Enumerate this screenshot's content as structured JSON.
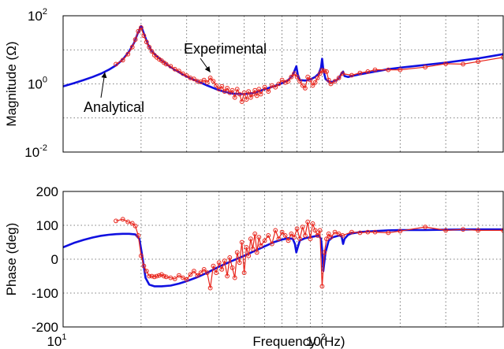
{
  "chart_data": [
    {
      "type": "line",
      "xscale": "log",
      "yscale": "log",
      "xlim": [
        10,
        500
      ],
      "ylim": [
        0.01,
        100
      ],
      "grid": true,
      "ylabel": "Magnitude (Ω)",
      "y_ticks": [
        {
          "base": "10",
          "exp": "-2"
        },
        {
          "base": "10",
          "exp": "0"
        },
        {
          "base": "10",
          "exp": "2"
        }
      ],
      "colors": {
        "analytical": "#1010e0",
        "experimental": "#e8231a"
      },
      "annotations": [
        {
          "text": "Experimental",
          "points_to": [
            37,
            2.2
          ]
        },
        {
          "text": "Analytical",
          "points_to": [
            14.5,
            2.2
          ]
        }
      ],
      "series": [
        {
          "name": "Analytical",
          "x": [
            10,
            11,
            12,
            13,
            14,
            15,
            16,
            17,
            18,
            18.8,
            19.4,
            20,
            20.5,
            21.2,
            22,
            24,
            26,
            28,
            30,
            33,
            36,
            40,
            45,
            50,
            55,
            60,
            65,
            70,
            74,
            77,
            78.5,
            79.5,
            80.5,
            82,
            86,
            90,
            94,
            97,
            99,
            100,
            101,
            103,
            106,
            110,
            114,
            117,
            119,
            120.5,
            122,
            126,
            130,
            140,
            160,
            180,
            200,
            250,
            300,
            350,
            400,
            450,
            500
          ],
          "y": [
            0.85,
            1.05,
            1.3,
            1.6,
            2.0,
            2.6,
            3.5,
            5.2,
            9,
            16,
            30,
            50,
            30,
            15,
            9,
            4.8,
            3.1,
            2.2,
            1.65,
            1.2,
            0.9,
            0.65,
            0.52,
            0.5,
            0.55,
            0.7,
            0.85,
            1.05,
            1.3,
            1.8,
            2.6,
            3.3,
            1.9,
            1.3,
            1.25,
            1.35,
            1.6,
            2.0,
            3.0,
            5.5,
            2.6,
            1.4,
            1.15,
            1.15,
            1.3,
            1.6,
            2.1,
            2.3,
            1.7,
            1.6,
            1.7,
            1.9,
            2.3,
            2.7,
            3.0,
            3.6,
            4.2,
            4.9,
            5.6,
            6.5,
            7.5
          ]
        },
        {
          "name": "Experimental",
          "x": [
            16,
            17,
            17.8,
            18.5,
            19,
            19.5,
            20,
            20.5,
            21,
            21.5,
            22,
            22.5,
            23,
            23.5,
            24,
            24.5,
            25,
            26,
            27,
            28,
            29,
            30,
            31,
            32,
            33,
            34,
            35,
            36,
            37,
            38,
            39,
            40,
            41,
            42,
            43,
            44,
            45,
            46,
            47,
            48,
            49,
            50,
            51,
            52,
            53,
            54,
            55,
            56,
            57,
            58,
            60,
            62,
            64,
            66,
            68,
            70,
            72,
            74,
            76,
            78,
            80,
            82,
            84,
            86,
            88,
            90,
            92,
            94,
            96,
            98,
            100,
            102,
            104,
            106,
            108,
            112,
            116,
            120,
            130,
            140,
            150,
            160,
            180,
            200,
            250,
            300,
            350,
            400,
            500
          ],
          "y": [
            3.8,
            5,
            7.5,
            12,
            20,
            35,
            45,
            26,
            17,
            12,
            9,
            7,
            6,
            5.3,
            4.8,
            4.2,
            3.8,
            3.3,
            2.7,
            2.4,
            2.0,
            1.75,
            1.5,
            1.4,
            1.2,
            1.15,
            1.3,
            1.1,
            1.5,
            1.2,
            0.9,
            0.7,
            0.85,
            0.6,
            0.75,
            0.55,
            0.65,
            0.4,
            0.7,
            0.5,
            0.3,
            0.55,
            0.35,
            0.6,
            0.4,
            0.5,
            0.65,
            0.45,
            0.7,
            0.5,
            0.8,
            0.6,
            0.9,
            0.8,
            1.0,
            1.3,
            1.1,
            1.2,
            1.6,
            2.0,
            1.6,
            1.2,
            0.9,
            0.75,
            1.6,
            1.3,
            0.9,
            1.1,
            1.5,
            2.0,
            2.5,
            2.4,
            2.3,
            1.3,
            1.0,
            1.2,
            1.5,
            2.0,
            1.8,
            2.1,
            2.3,
            2.6,
            2.6,
            2.6,
            3.1,
            3.9,
            3.8,
            4.5,
            6.0
          ]
        }
      ]
    },
    {
      "type": "line",
      "xscale": "log",
      "xlim": [
        10,
        500
      ],
      "ylim": [
        -200,
        200
      ],
      "grid": true,
      "ylabel": "Phase (deg)",
      "xlabel": "Frequency (Hz)",
      "y_ticks": [
        "-200",
        "-100",
        "0",
        "100",
        "200"
      ],
      "x_ticks": [
        {
          "base": "10",
          "exp": "1"
        },
        {
          "base": "10",
          "exp": "2"
        }
      ],
      "colors": {
        "analytical": "#1010e0",
        "experimental": "#e8231a"
      },
      "series": [
        {
          "name": "Analytical",
          "x": [
            10,
            11,
            12,
            13,
            14,
            15,
            16,
            17,
            18,
            19,
            19.7,
            20.2,
            20.8,
            21.5,
            22.5,
            24,
            26,
            28,
            30,
            33,
            36,
            40,
            45,
            50,
            55,
            60,
            65,
            70,
            74,
            77,
            78.5,
            79.5,
            80.5,
            82,
            86,
            90,
            94,
            97,
            99,
            100,
            101,
            103,
            106,
            110,
            114,
            117,
            119,
            120.5,
            122,
            126,
            130,
            140,
            160,
            180,
            200,
            250,
            300,
            400,
            500
          ],
          "y": [
            35,
            48,
            57,
            64,
            69,
            72,
            74,
            75,
            75,
            73,
            60,
            10,
            -55,
            -75,
            -80,
            -80,
            -78,
            -72,
            -65,
            -53,
            -40,
            -22,
            -5,
            10,
            25,
            38,
            50,
            58,
            62,
            60,
            45,
            20,
            35,
            55,
            62,
            65,
            68,
            70,
            60,
            30,
            -35,
            20,
            55,
            65,
            68,
            70,
            66,
            45,
            60,
            72,
            76,
            80,
            83,
            85,
            86,
            86,
            87,
            88,
            88
          ]
        },
        {
          "name": "Experimental",
          "x": [
            16,
            17,
            17.8,
            18.5,
            19,
            19.5,
            20,
            20.5,
            21,
            21.5,
            22,
            22.5,
            23,
            23.5,
            24,
            24.5,
            25,
            26,
            27,
            28,
            29,
            30,
            31,
            32,
            33,
            34,
            35,
            36,
            37,
            38,
            39,
            40,
            41,
            42,
            43,
            44,
            45,
            46,
            47,
            48,
            49,
            50,
            51,
            52,
            53,
            54,
            55,
            56,
            57,
            58,
            60,
            62,
            64,
            66,
            68,
            70,
            72,
            74,
            76,
            78,
            80,
            82,
            84,
            86,
            88,
            90,
            92,
            94,
            96,
            98,
            100,
            102,
            104,
            106,
            108,
            112,
            116,
            120,
            130,
            140,
            150,
            160,
            180,
            200,
            250,
            300,
            350,
            400,
            500
          ],
          "y": [
            113,
            118,
            110,
            106,
            98,
            70,
            10,
            -20,
            -35,
            -50,
            -50,
            -52,
            -50,
            -48,
            -45,
            -50,
            -52,
            -55,
            -58,
            -48,
            -55,
            -60,
            -45,
            -35,
            -48,
            -40,
            -30,
            -40,
            -85,
            -20,
            -40,
            -10,
            -30,
            -5,
            -50,
            5,
            -25,
            -55,
            20,
            -10,
            50,
            -40,
            35,
            10,
            60,
            30,
            75,
            20,
            65,
            40,
            55,
            70,
            45,
            85,
            60,
            80,
            70,
            55,
            75,
            65,
            90,
            60,
            95,
            70,
            110,
            60,
            105,
            85,
            70,
            85,
            -80,
            20,
            60,
            75,
            65,
            80,
            75,
            70,
            80,
            78,
            80,
            80,
            78,
            83,
            95,
            85,
            88,
            85,
            85
          ]
        }
      ]
    }
  ]
}
